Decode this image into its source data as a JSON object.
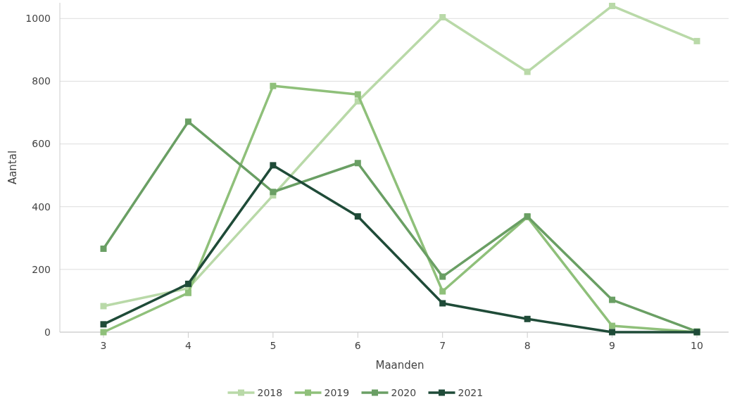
{
  "chart_data": {
    "type": "line",
    "xlabel": "Maanden",
    "ylabel": "Aantal",
    "categories": [
      "3",
      "4",
      "5",
      "6",
      "7",
      "8",
      "9",
      "10"
    ],
    "series": [
      {
        "name": "2018",
        "color": "#b9d9a8",
        "values": [
          83,
          140,
          436,
          736,
          1004,
          830,
          1040,
          928
        ]
      },
      {
        "name": "2019",
        "color": "#8fc07a",
        "values": [
          0,
          125,
          785,
          758,
          130,
          367,
          20,
          0
        ]
      },
      {
        "name": "2020",
        "color": "#6a9f64",
        "values": [
          266,
          671,
          447,
          539,
          177,
          369,
          103,
          2
        ]
      },
      {
        "name": "2021",
        "color": "#1f4b38",
        "values": [
          25,
          154,
          532,
          369,
          92,
          42,
          0,
          0
        ]
      }
    ],
    "ylim": [
      0,
      1050
    ],
    "yticks": [
      0,
      200,
      400,
      600,
      800,
      1000
    ],
    "grid": "y",
    "legend": "bottom",
    "marker": "square",
    "line_style": "solid"
  }
}
